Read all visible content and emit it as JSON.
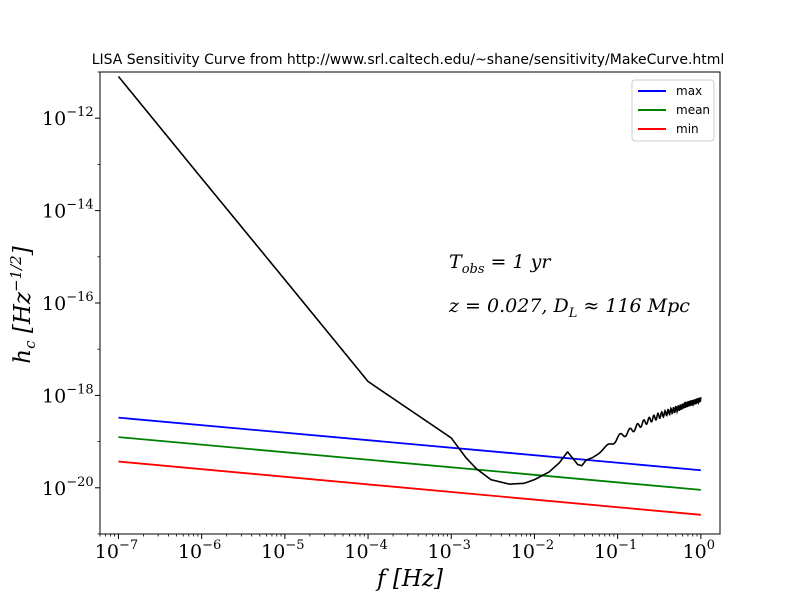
{
  "chart_data": {
    "type": "line",
    "title": "LISA Sensitivity Curve from http://www.srl.caltech.edu/~shane/sensitivity/MakeCurve.html",
    "xlabel": "f [Hz]",
    "ylabel": "h_c [Hz^{-1/2}]",
    "xscale": "log",
    "yscale": "log",
    "xlim": [
      6e-08,
      1.7
    ],
    "ylim": [
      1e-21,
      1e-11
    ],
    "x_ticks": [
      {
        "base": "10",
        "exp": "−7",
        "value": 1e-07
      },
      {
        "base": "10",
        "exp": "−6",
        "value": 1e-06
      },
      {
        "base": "10",
        "exp": "−5",
        "value": 1e-05
      },
      {
        "base": "10",
        "exp": "−4",
        "value": 0.0001
      },
      {
        "base": "10",
        "exp": "−3",
        "value": 0.001
      },
      {
        "base": "10",
        "exp": "−2",
        "value": 0.01
      },
      {
        "base": "10",
        "exp": "−1",
        "value": 0.1
      },
      {
        "base": "10",
        "exp": "0",
        "value": 1
      }
    ],
    "y_ticks": [
      {
        "base": "10",
        "exp": "−12",
        "value": 1e-12
      },
      {
        "base": "10",
        "exp": "−14",
        "value": 1e-14
      },
      {
        "base": "10",
        "exp": "−16",
        "value": 1e-16
      },
      {
        "base": "10",
        "exp": "−18",
        "value": 1e-18
      },
      {
        "base": "10",
        "exp": "−20",
        "value": 1e-20
      }
    ],
    "legend_position": "top-right",
    "series": [
      {
        "name": "max",
        "color": "#0000ff",
        "x": [
          1e-07,
          1
        ],
        "y": [
          3.3e-19,
          2.4e-20
        ]
      },
      {
        "name": "mean",
        "color": "#008000",
        "x": [
          1e-07,
          1
        ],
        "y": [
          1.25e-19,
          9e-21
        ]
      },
      {
        "name": "min",
        "color": "#ff0000",
        "x": [
          1e-07,
          1
        ],
        "y": [
          3.7e-20,
          2.6e-21
        ]
      }
    ],
    "sensitivity_curve": {
      "color": "#000000",
      "x": [
        1e-07,
        1e-06,
        1e-05,
        0.0001,
        0.001,
        0.0015,
        0.002,
        0.003,
        0.005,
        0.0075,
        0.01,
        0.015,
        0.02,
        0.025,
        0.03,
        0.033,
        0.037,
        0.042,
        0.05,
        0.065,
        0.08,
        0.1,
        0.15,
        0.2,
        0.3,
        0.5,
        0.7,
        1.0
      ],
      "y": [
        8e-12,
        5e-14,
        3.2e-16,
        2e-18,
        1.2e-19,
        4.5e-20,
        2.6e-20,
        1.5e-20,
        1.2e-20,
        1.25e-20,
        1.5e-20,
        2.2e-20,
        3.5e-20,
        6e-20,
        4e-20,
        3.2e-20,
        3e-20,
        4e-20,
        4.5e-20,
        6.5e-20,
        8.5e-20,
        1.2e-19,
        1.8e-19,
        2.5e-19,
        3.5e-19,
        5e-19,
        6.5e-19,
        8e-19
      ]
    },
    "annotations": [
      {
        "id": "tobs",
        "main": "T",
        "sub": "obs",
        "rest": " = 1 yr"
      },
      {
        "id": "zdl",
        "text": "z = 0.027, D",
        "sub": "L",
        "rest": " ≈ 116 Mpc"
      }
    ]
  }
}
